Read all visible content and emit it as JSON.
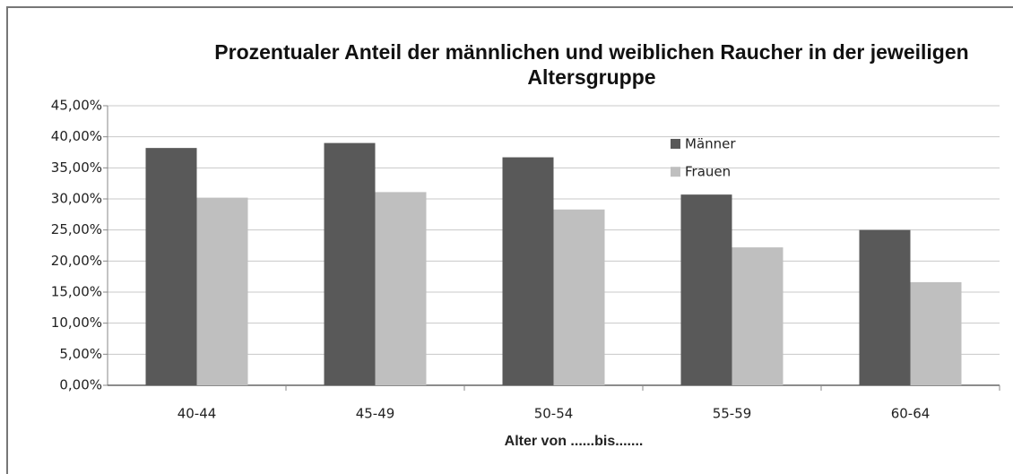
{
  "chart_data": {
    "type": "bar",
    "title": "Prozentualer Anteil der männlichen und weiblichen Raucher in der jeweiligen Altersgruppe",
    "x_label": "Alter von ......bis.......",
    "categories": [
      "40-44",
      "45-49",
      "50-54",
      "55-59",
      "60-64"
    ],
    "series": [
      {
        "name": "Männer",
        "color": "#595959",
        "values": [
          38.2,
          39.0,
          36.7,
          30.7,
          25.0
        ]
      },
      {
        "name": "Frauen",
        "color": "#bfbfbf",
        "values": [
          30.2,
          31.1,
          28.3,
          22.2,
          16.6
        ]
      }
    ],
    "ylim": [
      0,
      45
    ],
    "yticks": [
      {
        "value": 0,
        "label": "0,00%"
      },
      {
        "value": 5,
        "label": "5,00%"
      },
      {
        "value": 10,
        "label": "10,00%"
      },
      {
        "value": 15,
        "label": "15,00%"
      },
      {
        "value": 20,
        "label": "20,00%"
      },
      {
        "value": 25,
        "label": "25,00%"
      },
      {
        "value": 30,
        "label": "30,00%"
      },
      {
        "value": 35,
        "label": "35,00%"
      },
      {
        "value": 40,
        "label": "40,00%"
      },
      {
        "value": 45,
        "label": "45,00%"
      }
    ],
    "grid": true,
    "legend": "top-center"
  }
}
